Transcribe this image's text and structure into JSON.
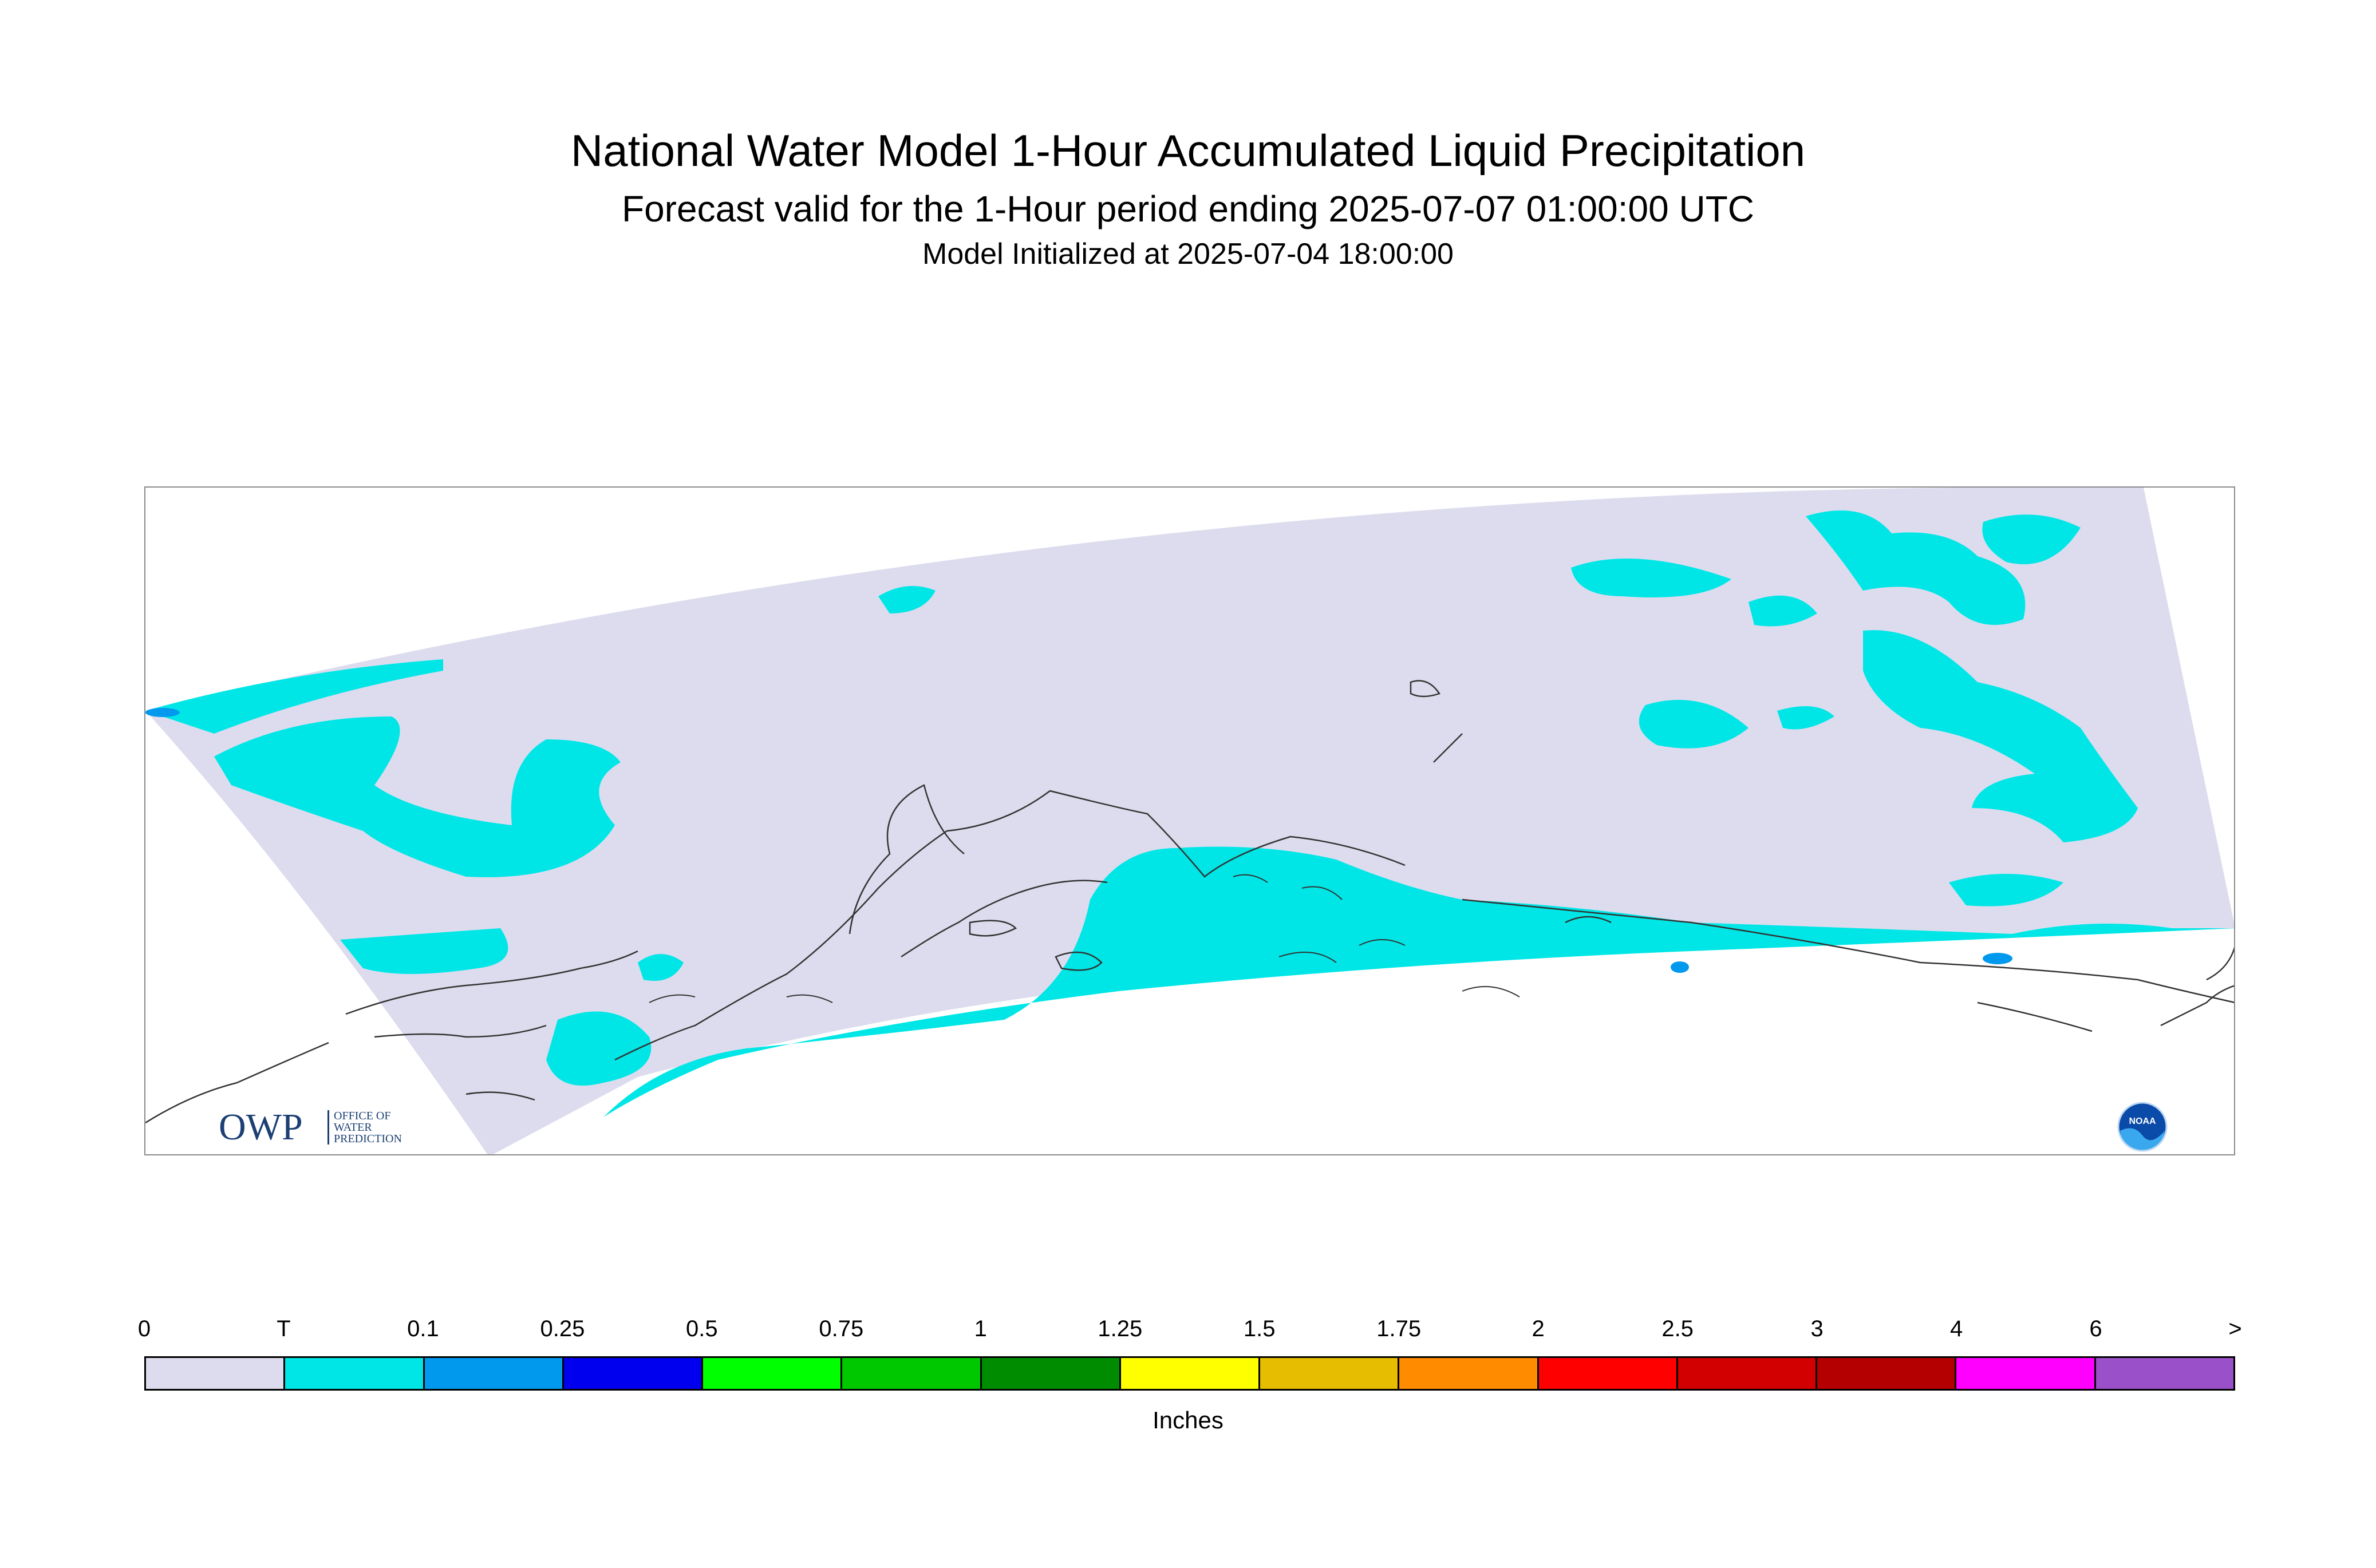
{
  "header": {
    "title": "National Water Model 1-Hour Accumulated Liquid Precipitation",
    "subtitle": "Forecast valid for the 1-Hour period ending 2025-07-07 01:00:00 UTC",
    "init": "Model Initialized at 2025-07-04 18:00:00"
  },
  "logos": {
    "owp_text": "OWP",
    "owp_line1": "OFFICE OF",
    "owp_line2": "WATER",
    "owp_line3": "PREDICTION",
    "owp_icon": "owp-logo-icon",
    "noaa_text": "NOAA",
    "noaa_icon": "noaa-logo-icon"
  },
  "map": {
    "domain_fill": "#dcdcee",
    "precip_trace": "#00e6e6",
    "precip_light": "#0099ee",
    "coast_color": "#333333"
  },
  "legend": {
    "ticks": [
      "0",
      "T",
      "0.1",
      "0.25",
      "0.5",
      "0.75",
      "1",
      "1.25",
      "1.5",
      "1.75",
      "2",
      "2.5",
      "3",
      "4",
      "6",
      ">"
    ],
    "colors": [
      "#dcdcee",
      "#00e6e6",
      "#0099ee",
      "#0000ee",
      "#00ff00",
      "#00c800",
      "#008c00",
      "#ffff00",
      "#e6bd00",
      "#ff8c00",
      "#ff0000",
      "#d20000",
      "#b40000",
      "#ff00ff",
      "#9a50c8"
    ],
    "units": "Inches"
  }
}
